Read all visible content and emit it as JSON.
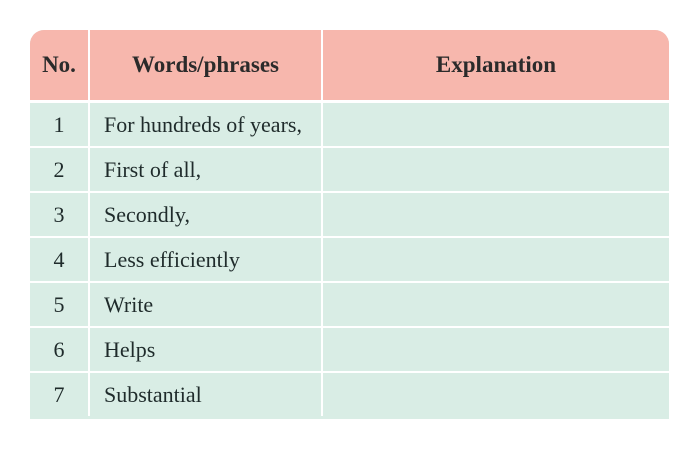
{
  "table": {
    "headers": {
      "no": "No.",
      "words": "Words/phrases",
      "explanation": "Explanation"
    },
    "rows": [
      {
        "no": "1",
        "word": "For hundreds of years,",
        "explanation": ""
      },
      {
        "no": "2",
        "word": "First of all,",
        "explanation": ""
      },
      {
        "no": "3",
        "word": "Secondly,",
        "explanation": ""
      },
      {
        "no": "4",
        "word": "Less efficiently",
        "explanation": ""
      },
      {
        "no": "5",
        "word": "Write",
        "explanation": ""
      },
      {
        "no": "6",
        "word": "Helps",
        "explanation": ""
      },
      {
        "no": "7",
        "word": "Substantial",
        "explanation": ""
      }
    ]
  },
  "colors": {
    "header_bg": "#f7b7ad",
    "row_bg": "#d9ede5",
    "divider": "#ffffff"
  }
}
